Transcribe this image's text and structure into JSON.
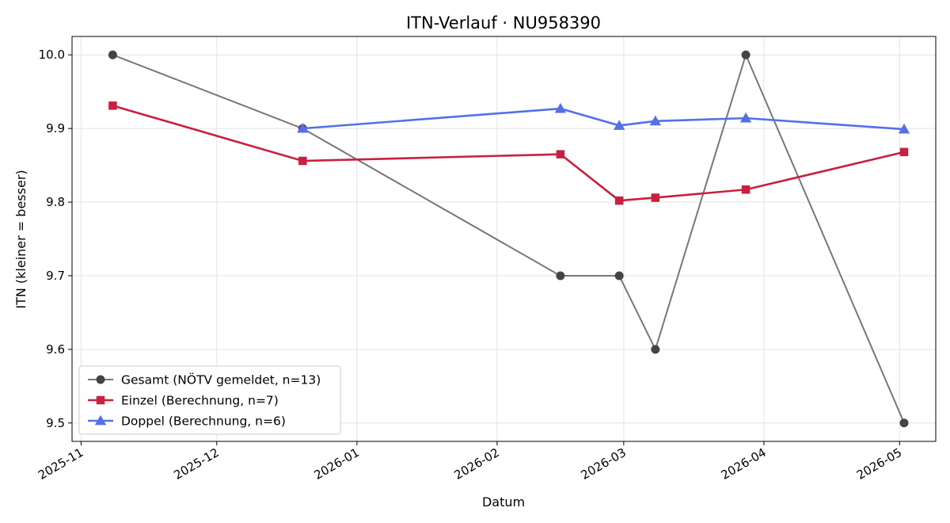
{
  "chart_data": {
    "type": "line",
    "title": "ITN-Verlauf · NU958390",
    "xlabel": "Datum",
    "ylabel": "ITN  (kleiner = besser)",
    "x_axis": {
      "type": "date",
      "range": [
        "2025-10-30",
        "2026-05-09"
      ],
      "ticks": [
        "2025-11-01",
        "2025-12-01",
        "2026-01-01",
        "2026-02-01",
        "2026-03-01",
        "2026-04-01",
        "2026-05-01"
      ],
      "tick_labels": [
        "2025-11",
        "2025-12",
        "2026-01",
        "2026-02",
        "2026-03",
        "2026-04",
        "2026-05"
      ]
    },
    "y_axis": {
      "range": [
        9.475,
        10.025
      ],
      "ticks": [
        9.5,
        9.6,
        9.7,
        9.8,
        9.9,
        10.0
      ],
      "tick_labels": [
        "9.5",
        "9.6",
        "9.7",
        "9.8",
        "9.9",
        "10.0"
      ]
    },
    "grid": true,
    "legend_position": "lower-left",
    "series": [
      {
        "name": "Gesamt (NÖTV gemeldet, n=13)",
        "color": "#777777",
        "marker_color": "#444444",
        "marker": "circle",
        "points": [
          {
            "x": "2025-11-08",
            "y": 10.0
          },
          {
            "x": "2025-12-20",
            "y": 9.9
          },
          {
            "x": "2026-02-15",
            "y": 9.7
          },
          {
            "x": "2026-02-28",
            "y": 9.7
          },
          {
            "x": "2026-03-08",
            "y": 9.6
          },
          {
            "x": "2026-03-28",
            "y": 10.0
          },
          {
            "x": "2026-05-02",
            "y": 9.5
          }
        ]
      },
      {
        "name": "Einzel (Berechnung, n=7)",
        "color": "#c8203f",
        "marker_color": "#c8203f",
        "marker": "square",
        "points": [
          {
            "x": "2025-11-08",
            "y": 9.931
          },
          {
            "x": "2025-12-20",
            "y": 9.856
          },
          {
            "x": "2026-02-15",
            "y": 9.865
          },
          {
            "x": "2026-02-28",
            "y": 9.802
          },
          {
            "x": "2026-03-08",
            "y": 9.806
          },
          {
            "x": "2026-03-28",
            "y": 9.817
          },
          {
            "x": "2026-05-02",
            "y": 9.868
          }
        ]
      },
      {
        "name": "Doppel (Berechnung, n=6)",
        "color": "#5470e8",
        "marker_color": "#5470e8",
        "marker": "triangle",
        "points": [
          {
            "x": "2025-12-20",
            "y": 9.9
          },
          {
            "x": "2026-02-15",
            "y": 9.927
          },
          {
            "x": "2026-02-28",
            "y": 9.904
          },
          {
            "x": "2026-03-08",
            "y": 9.91
          },
          {
            "x": "2026-03-28",
            "y": 9.914
          },
          {
            "x": "2026-05-02",
            "y": 9.899
          }
        ]
      }
    ]
  }
}
